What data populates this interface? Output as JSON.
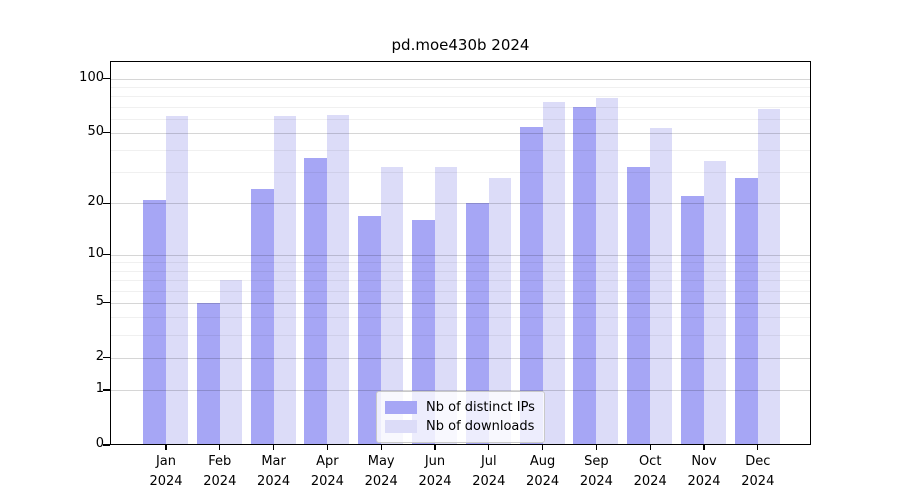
{
  "chart_data": {
    "type": "bar",
    "title": "pd.moe430b 2024",
    "year": "2024",
    "categories": [
      "Jan",
      "Feb",
      "Mar",
      "Apr",
      "May",
      "Jun",
      "Jul",
      "Aug",
      "Sep",
      "Oct",
      "Nov",
      "Dec"
    ],
    "series": [
      {
        "name": "Nb of distinct IPs",
        "color": "#a6a6f5",
        "values": [
          21,
          5,
          24,
          36,
          17,
          16,
          20,
          54,
          70,
          32,
          22,
          28
        ]
      },
      {
        "name": "Nb of downloads",
        "color": "#dcdcf8",
        "values": [
          62,
          7,
          62,
          63,
          32,
          32,
          28,
          74,
          78,
          53,
          35,
          68
        ]
      }
    ],
    "yscale": "log1p",
    "yticks": [
      0,
      1,
      2,
      5,
      10,
      20,
      50,
      100
    ],
    "minor_gridlines": [
      3,
      4,
      6,
      7,
      8,
      9,
      30,
      40,
      60,
      70,
      80,
      90
    ],
    "ylim": [
      0,
      125
    ],
    "xlabel": "",
    "ylabel": "",
    "grid": true,
    "legend_position": "bottom-center"
  }
}
